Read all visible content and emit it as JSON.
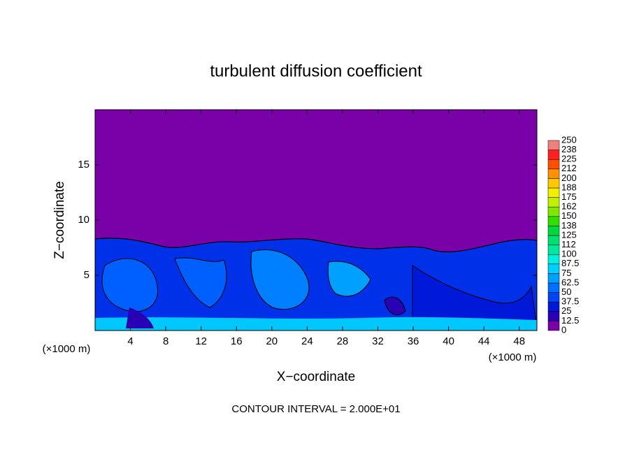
{
  "chart_data": {
    "type": "contour",
    "title": "turbulent diffusion coefficient",
    "xlabel": "X−coordinate",
    "ylabel": "Z−coordinate",
    "x_unit_left": "(×1000 m)",
    "x_unit_right": "(×1000 m)",
    "note": "CONTOUR INTERVAL = 2.000E+01",
    "xlim": [
      0,
      50
    ],
    "ylim": [
      0,
      20
    ],
    "xticks": [
      4,
      8,
      12,
      16,
      20,
      24,
      28,
      32,
      36,
      40,
      44,
      48
    ],
    "yticks": [
      5,
      10,
      15
    ],
    "colorbar": {
      "ticks": [
        0,
        12.5,
        25,
        37.5,
        50,
        62.5,
        75,
        87.5,
        100,
        {
          "value": 112.5,
          "label": "112"
        },
        125,
        {
          "value": 137.5,
          "label": "138"
        },
        150,
        {
          "value": 162.5,
          "label": "162"
        },
        175,
        {
          "value": 187.5,
          "label": "188"
        },
        200,
        {
          "value": 212.5,
          "label": "212"
        },
        225,
        {
          "value": 237.5,
          "label": "238"
        },
        250
      ],
      "colors": [
        "#7a00a8",
        "#2a00b4",
        "#0018d8",
        "#0044f4",
        "#0070ff",
        "#00a0ff",
        "#00d0ff",
        "#00f0e0",
        "#00e8a0",
        "#00e070",
        "#00d840",
        "#30e000",
        "#80e800",
        "#c0f000",
        "#f0f000",
        "#ffc800",
        "#ff9000",
        "#ff5000",
        "#ff2020",
        "#f08080"
      ]
    }
  }
}
